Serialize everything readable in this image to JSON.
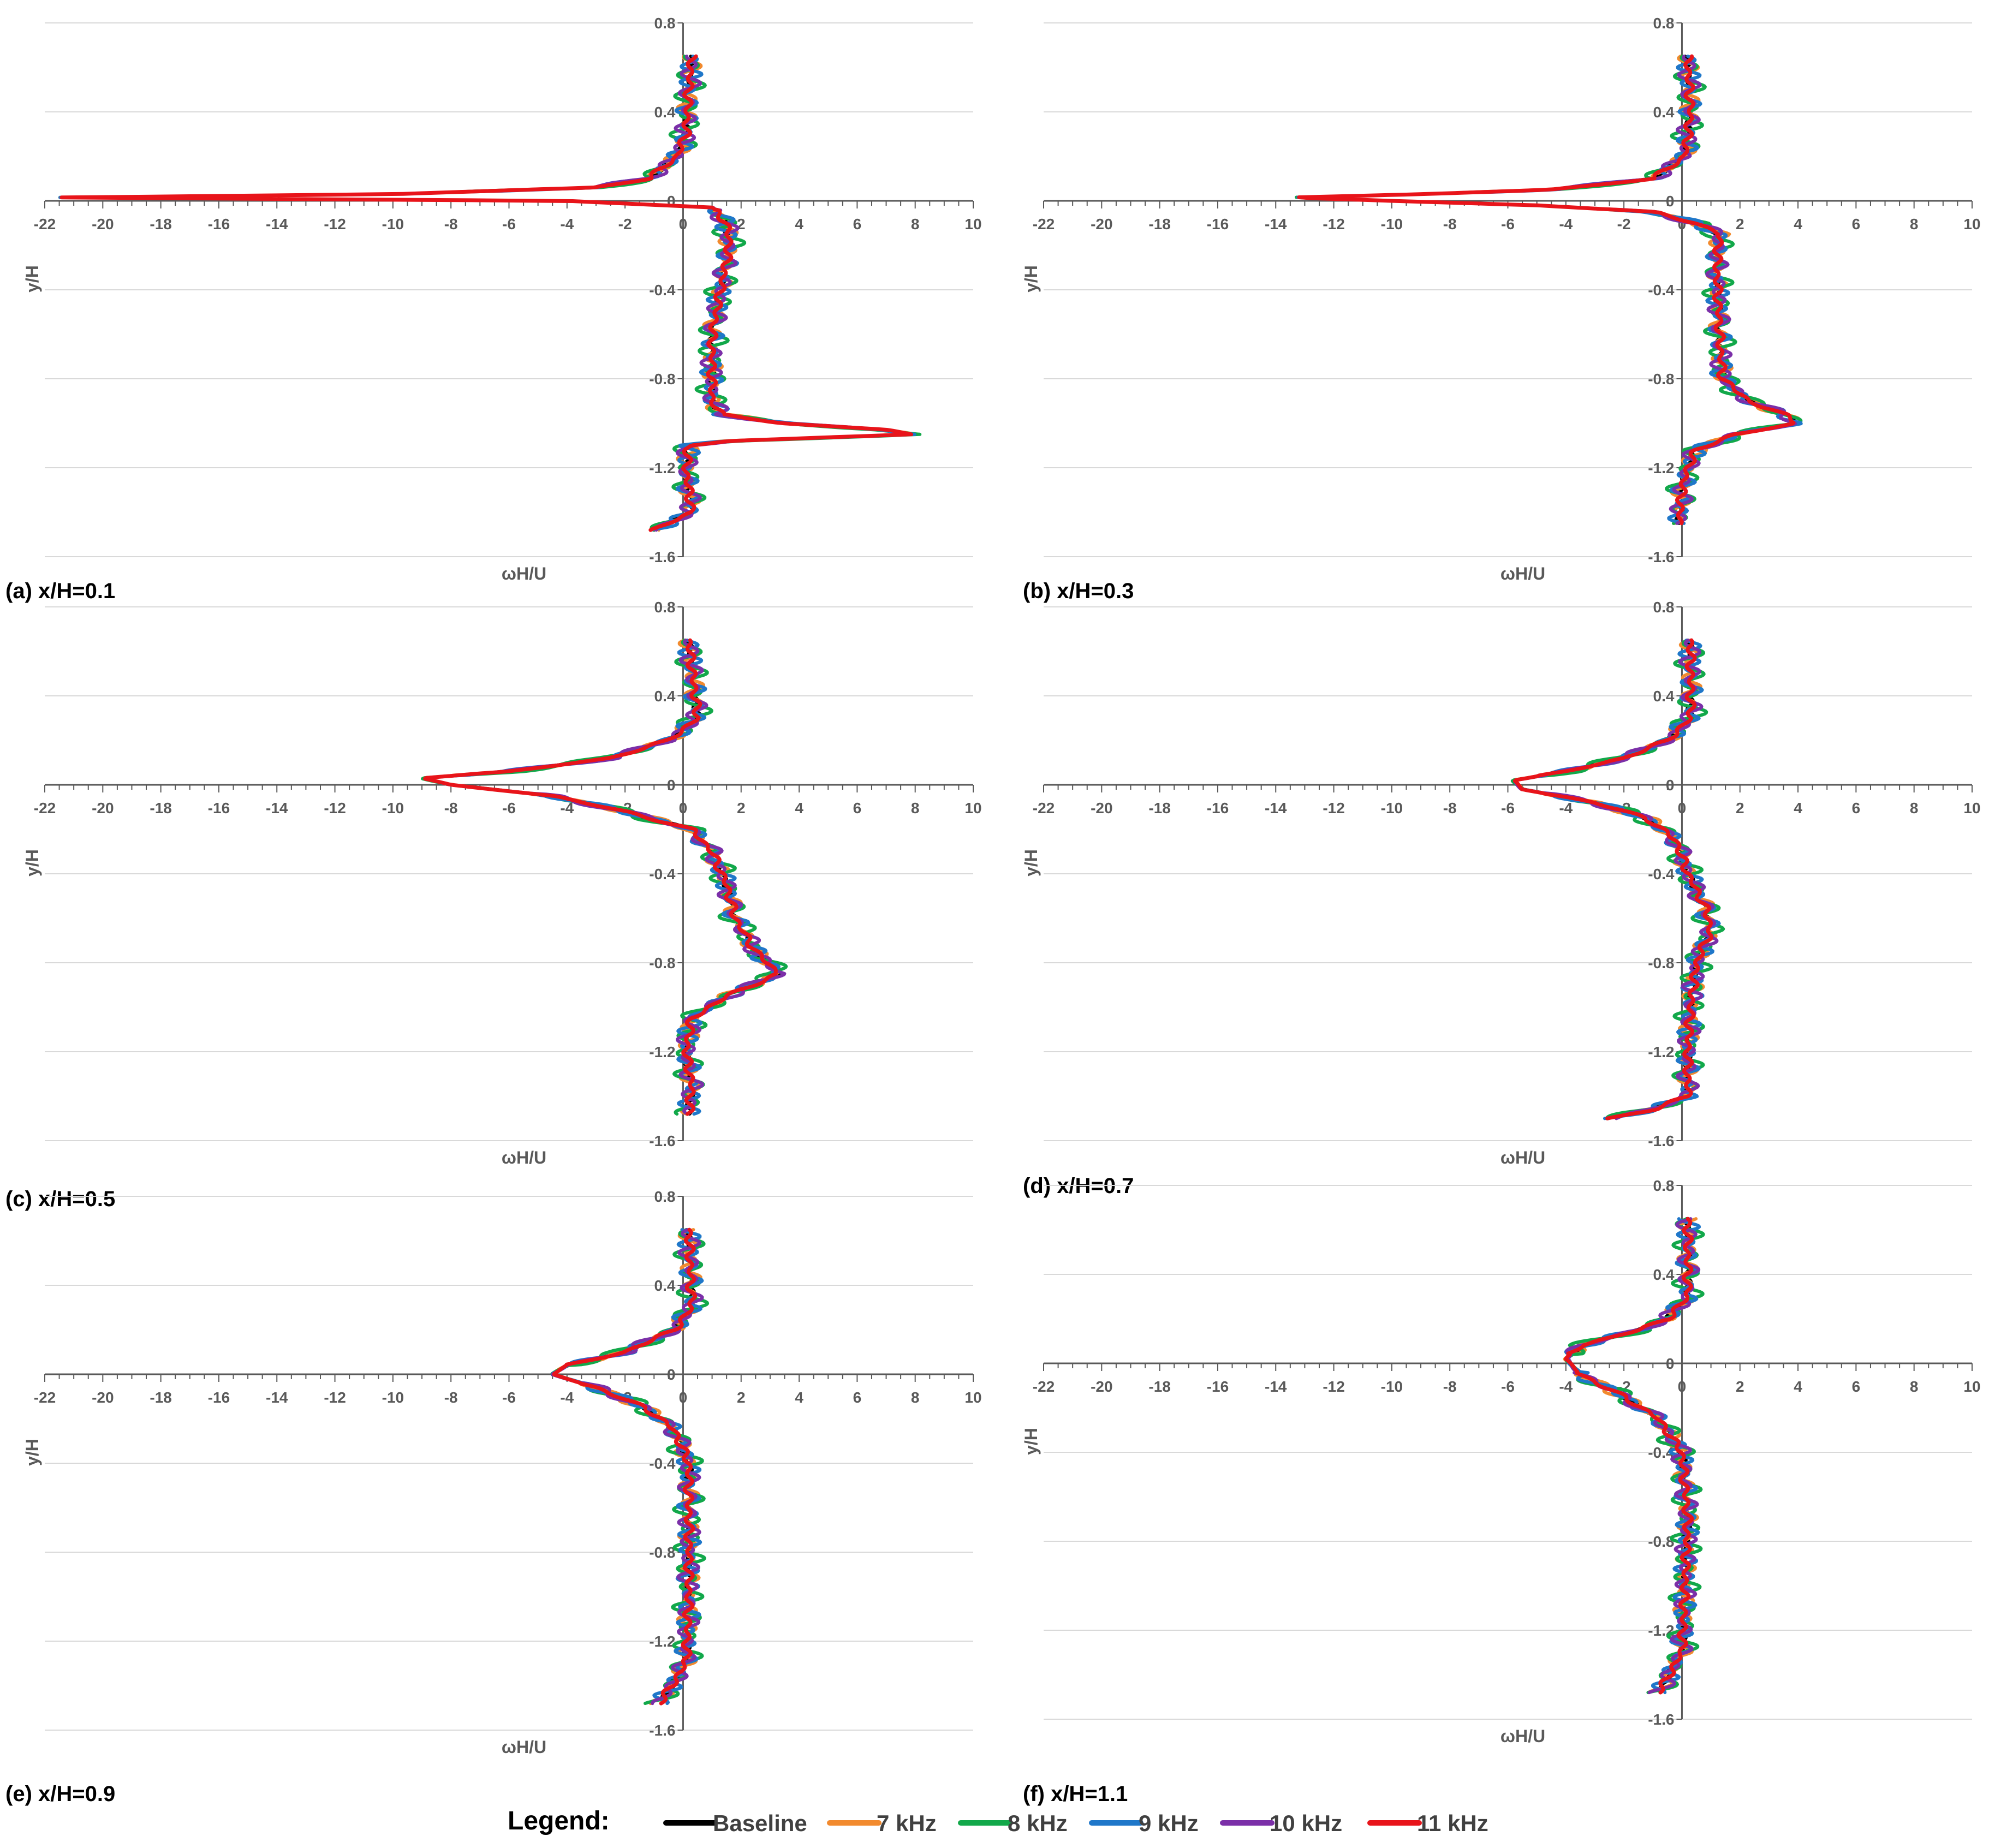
{
  "figure": {
    "legend": {
      "title": "Legend:",
      "entries": [
        {
          "label": "Baseline",
          "color": "#000000"
        },
        {
          "label": "7 kHz",
          "color": "#F28A2E"
        },
        {
          "label": "8 kHz",
          "color": "#12A84A"
        },
        {
          "label": "9 kHz",
          "color": "#1F77C9"
        },
        {
          "label": "10 kHz",
          "color": "#7B2FA8"
        },
        {
          "label": "11 kHz",
          "color": "#E8141A"
        }
      ]
    }
  },
  "chart_data": [
    {
      "type": "line",
      "caption": "(a) x/H=0.1",
      "xlabel": "ωH/U",
      "ylabel": "y/H",
      "xlim": [
        -22,
        10
      ],
      "ylim": [
        -1.6,
        0.8
      ],
      "xticks": [
        "-22",
        "-20",
        "-18",
        "-16",
        "-14",
        "-12",
        "-10",
        "-8",
        "-6",
        "-4",
        "-2",
        "0",
        "2",
        "4",
        "6",
        "8",
        "10"
      ],
      "yticks": [
        "0.8",
        "0.4",
        "0",
        "-0.4",
        "-0.8",
        "-1.2",
        "-1.6"
      ],
      "grid": "horizontal",
      "profile": {
        "y": [
          0.65,
          0.5,
          0.3,
          0.2,
          0.1,
          0.06,
          0.03,
          0.015,
          0.0,
          -0.03,
          -0.1,
          -0.2,
          -0.4,
          -0.6,
          -0.8,
          -0.9,
          -0.96,
          -1.0,
          -1.03,
          -1.05,
          -1.08,
          -1.1,
          -1.2,
          -1.3,
          -1.4,
          -1.48
        ],
        "x": [
          0.3,
          0.2,
          0.1,
          -0.2,
          -1.2,
          -3.0,
          -10.0,
          -21.5,
          -4.0,
          1.0,
          1.5,
          1.6,
          1.3,
          1.0,
          1.0,
          1.0,
          1.3,
          3.5,
          7.0,
          7.9,
          1.5,
          0.2,
          0.1,
          0.2,
          0.3,
          -1.0
        ]
      },
      "series": [
        {
          "name": "Baseline",
          "amp": 0.12,
          "freq": 33,
          "phase": 0.0
        },
        {
          "name": "7 kHz",
          "amp": 0.35,
          "freq": 27,
          "phase": 1.1
        },
        {
          "name": "8 kHz",
          "amp": 0.55,
          "freq": 23,
          "phase": 2.3
        },
        {
          "name": "9 kHz",
          "amp": 0.4,
          "freq": 31,
          "phase": 3.4
        },
        {
          "name": "10 kHz",
          "amp": 0.38,
          "freq": 25,
          "phase": 4.6
        },
        {
          "name": "11 kHz",
          "amp": 0.15,
          "freq": 29,
          "phase": 5.7
        }
      ]
    },
    {
      "type": "line",
      "caption": "(b) x/H=0.3",
      "xlabel": "ωH/U",
      "ylabel": "y/H",
      "xlim": [
        -22,
        10
      ],
      "ylim": [
        -1.6,
        0.8
      ],
      "xticks": [
        "-22",
        "-20",
        "-18",
        "-16",
        "-14",
        "-12",
        "-10",
        "-8",
        "-6",
        "-4",
        "-2",
        "0",
        "2",
        "4",
        "6",
        "8",
        "10"
      ],
      "yticks": [
        "0.8",
        "0.4",
        "0",
        "-0.4",
        "-0.8",
        "-1.2",
        "-1.6"
      ],
      "grid": "horizontal",
      "profile": {
        "y": [
          0.65,
          0.4,
          0.2,
          0.1,
          0.05,
          0.03,
          0.015,
          0.0,
          -0.02,
          -0.05,
          -0.1,
          -0.15,
          -0.3,
          -0.6,
          -0.8,
          -0.9,
          -0.96,
          -1.0,
          -1.05,
          -1.12,
          -1.2,
          -1.3,
          -1.45
        ],
        "x": [
          0.2,
          0.3,
          0.1,
          -1.0,
          -4.5,
          -9.0,
          -13.5,
          -10.0,
          -5.0,
          -1.0,
          0.5,
          1.3,
          1.2,
          1.3,
          1.4,
          2.3,
          3.5,
          4.0,
          1.8,
          0.5,
          0.2,
          0.0,
          -0.1
        ]
      },
      "series": [
        {
          "name": "Baseline",
          "amp": 0.12,
          "freq": 33,
          "phase": 0.4
        },
        {
          "name": "7 kHz",
          "amp": 0.35,
          "freq": 27,
          "phase": 1.5
        },
        {
          "name": "8 kHz",
          "amp": 0.55,
          "freq": 23,
          "phase": 2.7
        },
        {
          "name": "9 kHz",
          "amp": 0.4,
          "freq": 31,
          "phase": 3.8
        },
        {
          "name": "10 kHz",
          "amp": 0.38,
          "freq": 25,
          "phase": 5.0
        },
        {
          "name": "11 kHz",
          "amp": 0.15,
          "freq": 29,
          "phase": 6.1
        }
      ]
    },
    {
      "type": "line",
      "caption": "(c) x/H=0.5",
      "xlabel": "ωH/U",
      "ylabel": "y/H",
      "xlim": [
        -22,
        10
      ],
      "ylim": [
        -1.6,
        0.8
      ],
      "xticks": [
        "-22",
        "-20",
        "-18",
        "-16",
        "-14",
        "-12",
        "-10",
        "-8",
        "-6",
        "-4",
        "-2",
        "0",
        "2",
        "4",
        "6",
        "8",
        "10"
      ],
      "yticks": [
        "0.8",
        "0.4",
        "0",
        "-0.4",
        "-0.8",
        "-1.2",
        "-1.6"
      ],
      "grid": "horizontal",
      "profile": {
        "y": [
          0.65,
          0.3,
          0.2,
          0.12,
          0.06,
          0.03,
          0.0,
          -0.05,
          -0.12,
          -0.2,
          -0.3,
          -0.45,
          -0.6,
          -0.75,
          -0.85,
          -0.95,
          -1.05,
          -1.2,
          -1.35,
          -1.48
        ],
        "x": [
          0.2,
          0.5,
          -0.5,
          -2.5,
          -6.0,
          -9.0,
          -8.0,
          -4.5,
          -2.0,
          0.3,
          1.0,
          1.5,
          1.8,
          2.5,
          3.3,
          1.5,
          0.3,
          0.1,
          0.3,
          0.2
        ]
      },
      "series": [
        {
          "name": "Baseline",
          "amp": 0.12,
          "freq": 33,
          "phase": 0.8
        },
        {
          "name": "7 kHz",
          "amp": 0.35,
          "freq": 27,
          "phase": 1.9
        },
        {
          "name": "8 kHz",
          "amp": 0.55,
          "freq": 23,
          "phase": 3.1
        },
        {
          "name": "9 kHz",
          "amp": 0.4,
          "freq": 31,
          "phase": 4.2
        },
        {
          "name": "10 kHz",
          "amp": 0.38,
          "freq": 25,
          "phase": 5.4
        },
        {
          "name": "11 kHz",
          "amp": 0.15,
          "freq": 29,
          "phase": 0.3
        }
      ]
    },
    {
      "type": "line",
      "caption": "(d) x/H=0.7",
      "xlabel": "ωH/U",
      "ylabel": "y/H",
      "xlim": [
        -22,
        10
      ],
      "ylim": [
        -1.6,
        0.8
      ],
      "xticks": [
        "-22",
        "-20",
        "-18",
        "-16",
        "-14",
        "-12",
        "-10",
        "-8",
        "-6",
        "-4",
        "-2",
        "0",
        "2",
        "4",
        "6",
        "8",
        "10"
      ],
      "yticks": [
        "0.8",
        "0.4",
        "0",
        "-0.4",
        "-0.8",
        "-1.2",
        "-1.6"
      ],
      "grid": "horizontal",
      "profile": {
        "y": [
          0.65,
          0.3,
          0.2,
          0.12,
          0.06,
          0.02,
          -0.02,
          -0.08,
          -0.15,
          -0.25,
          -0.4,
          -0.55,
          -0.65,
          -0.8,
          -1.0,
          -1.2,
          -1.4,
          -1.46,
          -1.5
        ],
        "x": [
          0.3,
          0.3,
          -0.5,
          -2.0,
          -4.0,
          -5.8,
          -5.5,
          -3.0,
          -1.2,
          -0.2,
          0.2,
          0.8,
          1.0,
          0.5,
          0.3,
          0.2,
          0.2,
          -1.0,
          -2.5
        ]
      },
      "series": [
        {
          "name": "Baseline",
          "amp": 0.12,
          "freq": 33,
          "phase": 1.2
        },
        {
          "name": "7 kHz",
          "amp": 0.35,
          "freq": 27,
          "phase": 2.3
        },
        {
          "name": "8 kHz",
          "amp": 0.55,
          "freq": 23,
          "phase": 3.5
        },
        {
          "name": "9 kHz",
          "amp": 0.4,
          "freq": 31,
          "phase": 4.6
        },
        {
          "name": "10 kHz",
          "amp": 0.38,
          "freq": 25,
          "phase": 5.8
        },
        {
          "name": "11 kHz",
          "amp": 0.15,
          "freq": 29,
          "phase": 0.7
        }
      ]
    },
    {
      "type": "line",
      "caption": "(e) x/H=0.9",
      "xlabel": "ωH/U",
      "ylabel": "y/H",
      "xlim": [
        -22,
        10
      ],
      "ylim": [
        -1.6,
        0.8
      ],
      "xticks": [
        "-22",
        "-20",
        "-18",
        "-16",
        "-14",
        "-12",
        "-10",
        "-8",
        "-6",
        "-4",
        "-2",
        "0",
        "2",
        "4",
        "6",
        "8",
        "10"
      ],
      "yticks": [
        "0.8",
        "0.4",
        "0",
        "-0.4",
        "-0.8",
        "-1.2",
        "-1.6"
      ],
      "grid": "horizontal",
      "profile": {
        "y": [
          0.65,
          0.3,
          0.2,
          0.1,
          0.04,
          0.0,
          -0.06,
          -0.15,
          -0.25,
          -0.4,
          -0.7,
          -1.0,
          -1.3,
          -1.48
        ],
        "x": [
          0.2,
          0.3,
          -0.3,
          -2.0,
          -4.0,
          -4.5,
          -3.0,
          -1.3,
          -0.3,
          0.2,
          0.2,
          0.2,
          0.1,
          -0.8
        ]
      },
      "series": [
        {
          "name": "Baseline",
          "amp": 0.12,
          "freq": 33,
          "phase": 1.6
        },
        {
          "name": "7 kHz",
          "amp": 0.35,
          "freq": 27,
          "phase": 2.7
        },
        {
          "name": "8 kHz",
          "amp": 0.55,
          "freq": 23,
          "phase": 3.9
        },
        {
          "name": "9 kHz",
          "amp": 0.4,
          "freq": 31,
          "phase": 5.0
        },
        {
          "name": "10 kHz",
          "amp": 0.38,
          "freq": 25,
          "phase": 6.2
        },
        {
          "name": "11 kHz",
          "amp": 0.15,
          "freq": 29,
          "phase": 1.1
        }
      ]
    },
    {
      "type": "line",
      "caption": "(f) x/H=1.1",
      "xlabel": "ωH/U",
      "ylabel": "y/H",
      "xlim": [
        -22,
        10
      ],
      "ylim": [
        -1.6,
        0.8
      ],
      "xticks": [
        "-22",
        "-20",
        "-18",
        "-16",
        "-14",
        "-12",
        "-10",
        "-8",
        "-6",
        "-4",
        "-2",
        "0",
        "2",
        "4",
        "6",
        "8",
        "10"
      ],
      "yticks": [
        "0.8",
        "0.4",
        "0",
        "-0.4",
        "-0.8",
        "-1.2",
        "-1.6"
      ],
      "grid": "horizontal",
      "profile": {
        "y": [
          0.65,
          0.3,
          0.2,
          0.15,
          0.08,
          0.02,
          -0.05,
          -0.15,
          -0.25,
          -0.4,
          -0.7,
          -1.0,
          -1.3,
          -1.48
        ],
        "x": [
          0.2,
          0.2,
          -0.5,
          -1.5,
          -3.5,
          -4.0,
          -3.5,
          -2.0,
          -0.8,
          0.0,
          0.2,
          0.1,
          0.0,
          -0.8
        ]
      },
      "series": [
        {
          "name": "Baseline",
          "amp": 0.12,
          "freq": 33,
          "phase": 2.0
        },
        {
          "name": "7 kHz",
          "amp": 0.35,
          "freq": 27,
          "phase": 3.1
        },
        {
          "name": "8 kHz",
          "amp": 0.55,
          "freq": 23,
          "phase": 4.3
        },
        {
          "name": "9 kHz",
          "amp": 0.4,
          "freq": 31,
          "phase": 5.4
        },
        {
          "name": "10 kHz",
          "amp": 0.38,
          "freq": 25,
          "phase": 0.3
        },
        {
          "name": "11 kHz",
          "amp": 0.15,
          "freq": 29,
          "phase": 1.5
        }
      ]
    }
  ]
}
